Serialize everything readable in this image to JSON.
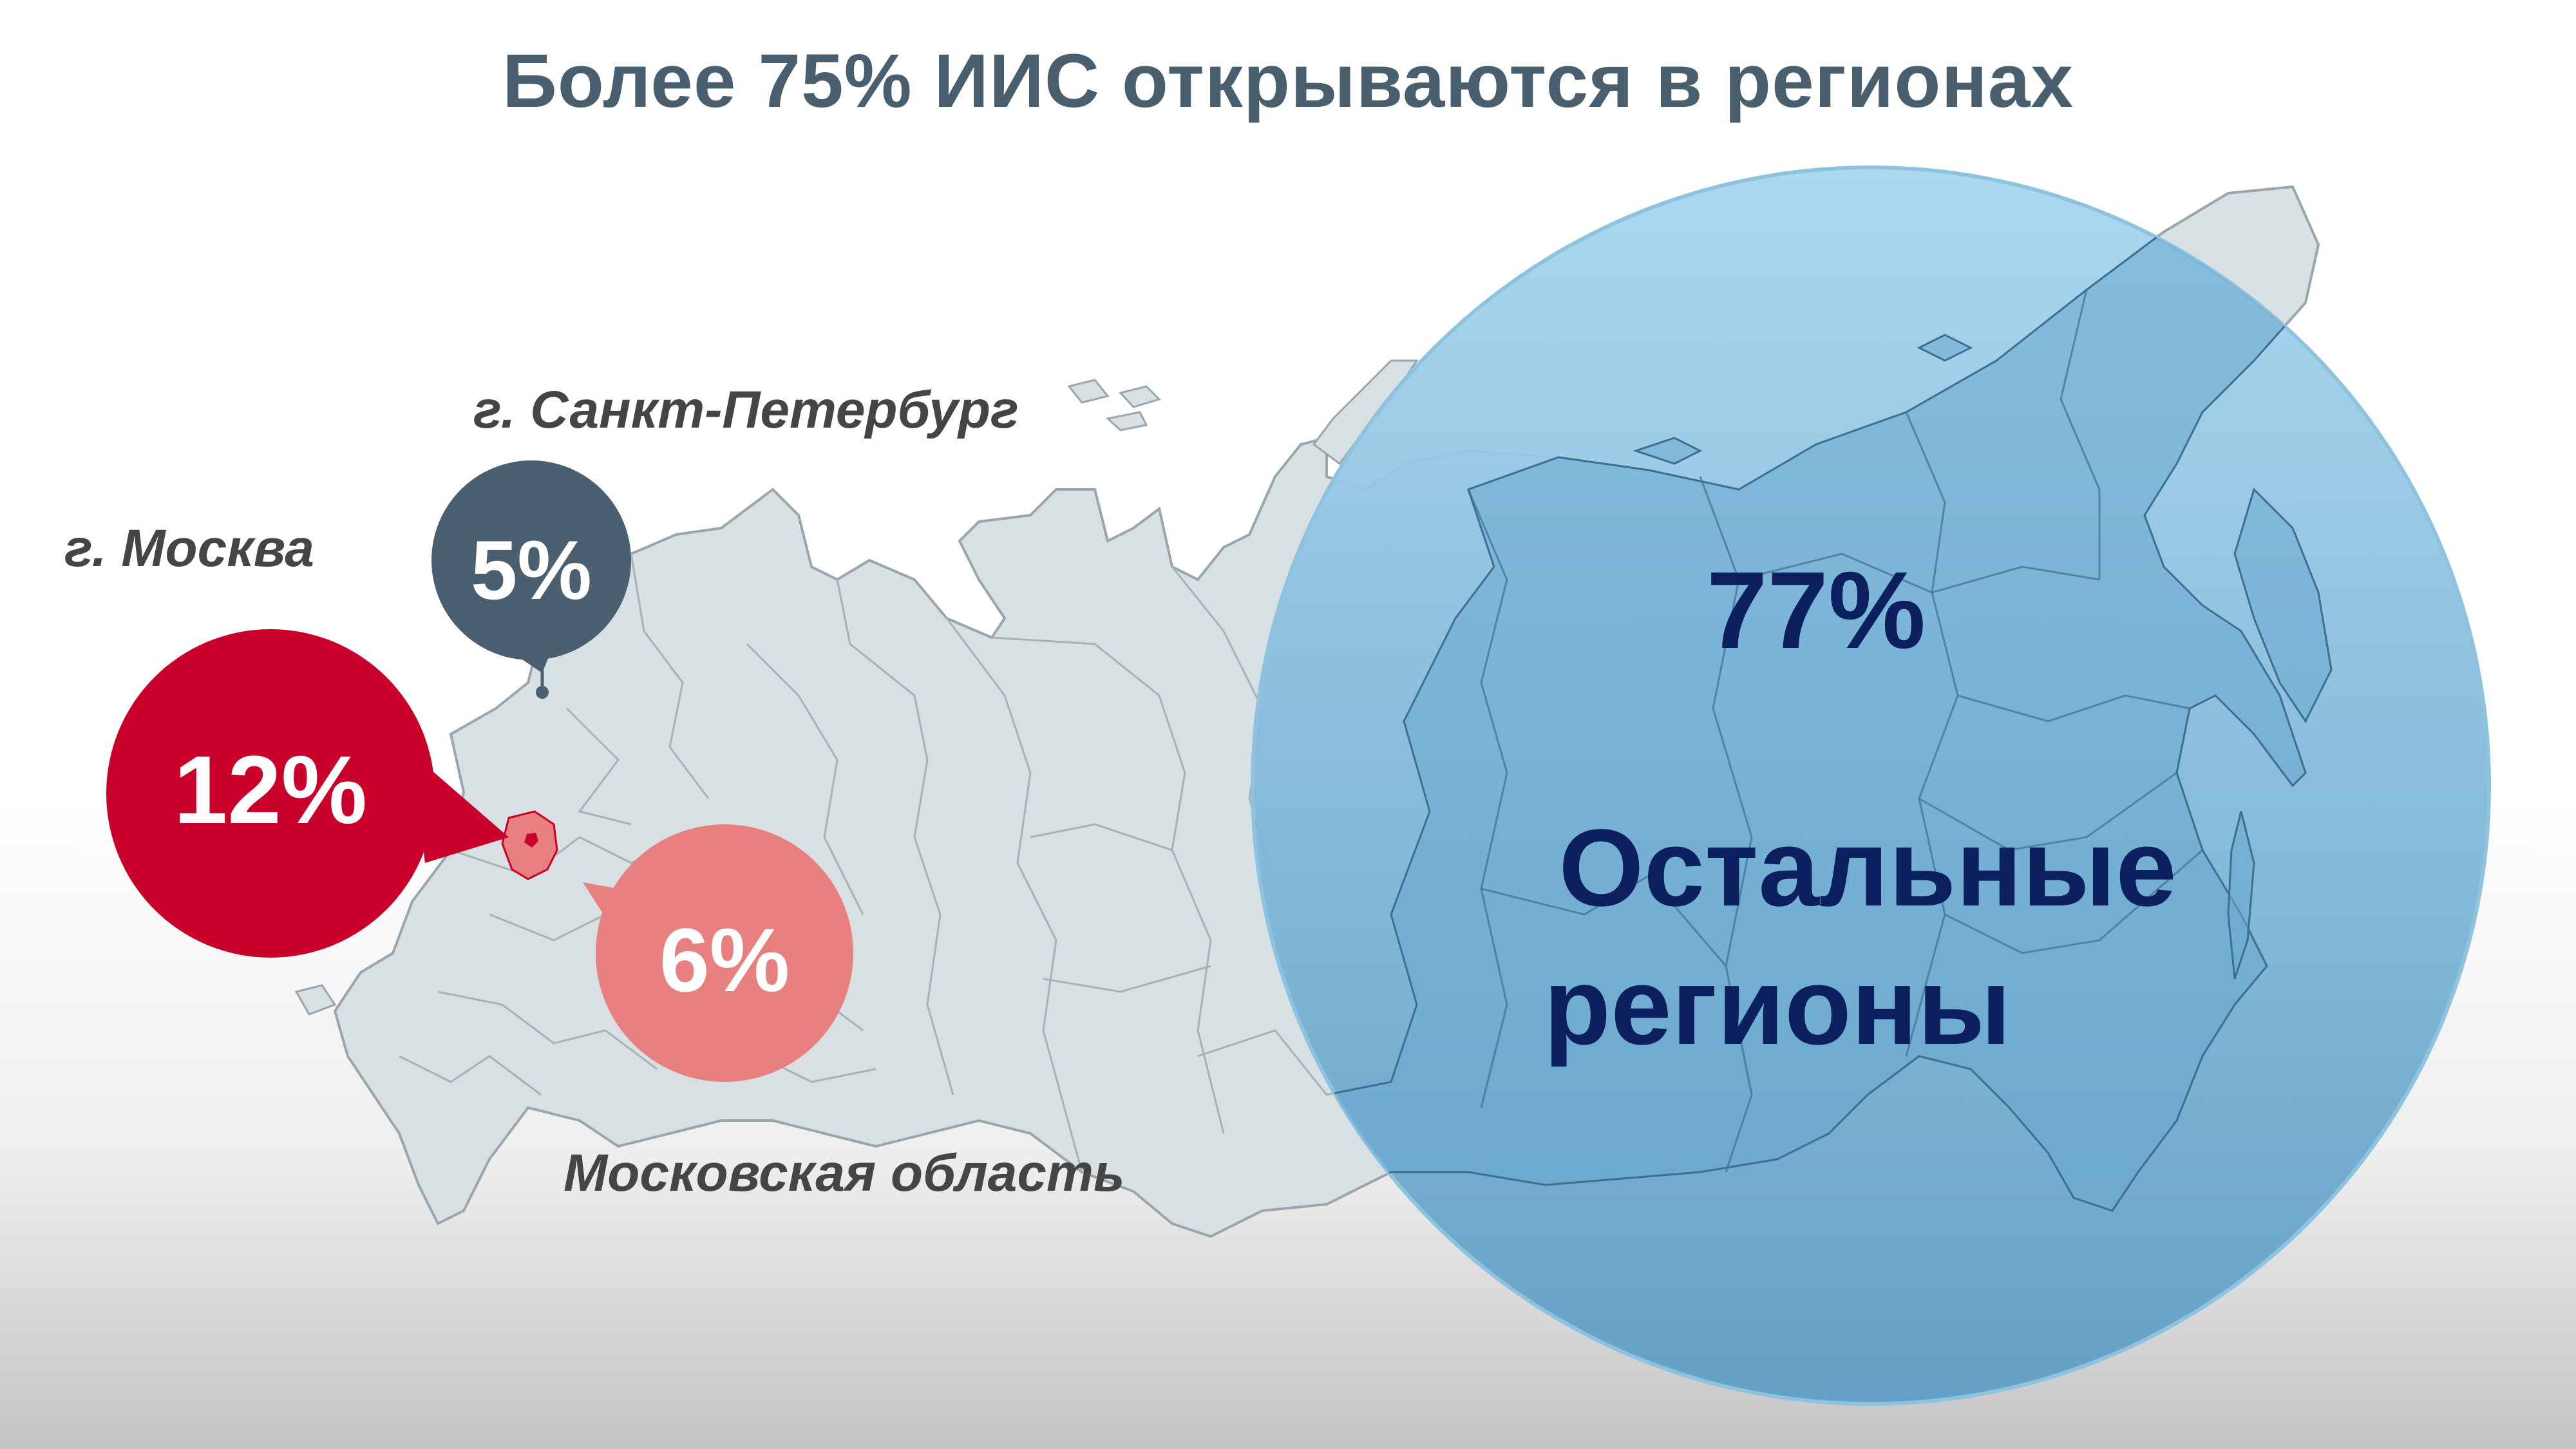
{
  "title": "Более 75% ИИС открываются в регионах",
  "regions": {
    "moscow_city": {
      "label": "г. Москва",
      "percent": "12%",
      "color": "#c8002a"
    },
    "spb": {
      "label": "г. Санкт-Петербург",
      "percent": "5%",
      "color": "#4a6070"
    },
    "moscow_oblast": {
      "label": "Московская область",
      "percent": "6%",
      "color": "#e88080"
    },
    "other": {
      "percent": "77%",
      "label_line1": "Остальные",
      "label_line2": "регионы",
      "color": "#7bbbe0",
      "text_color": "#0c1f5e"
    }
  },
  "map_icons": {
    "moscow_pin": "region-highlight-icon",
    "spb_pin": "location-pin-icon"
  }
}
